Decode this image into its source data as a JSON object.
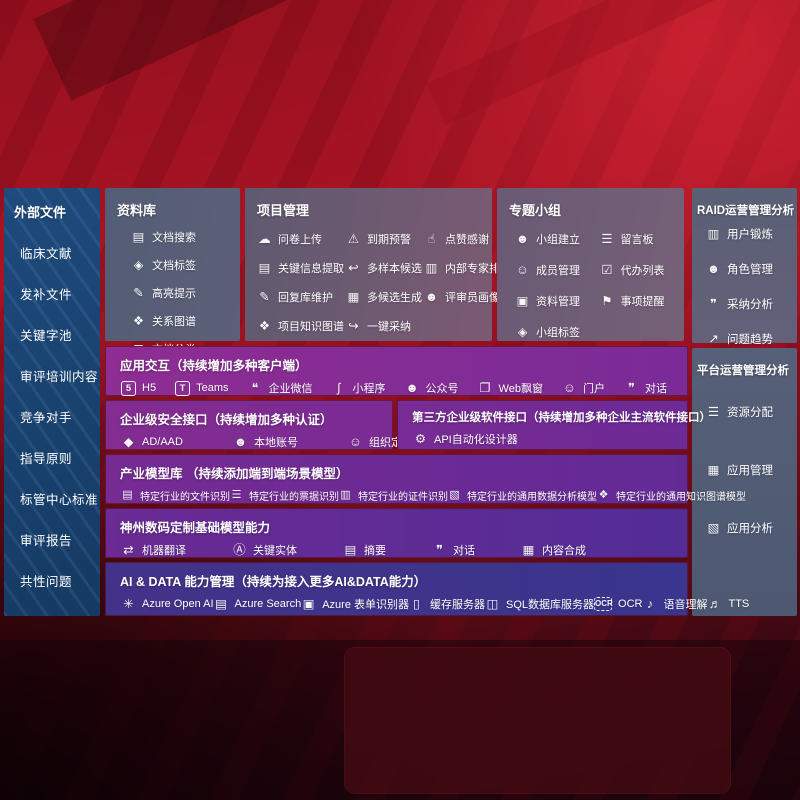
{
  "colors": {
    "accent_red": "#a81424",
    "sidebar_blue": "#1b4470",
    "panel_slate": "#5c6780",
    "row_purple": "#7a2b94",
    "row_indigo": "#3a358e",
    "text": "#ffffff"
  },
  "sidebar": {
    "title": "外部文件",
    "items": [
      "临床文献",
      "发补文件",
      "关键字池",
      "审评培训内容",
      "竞争对手",
      "指导原则",
      "标管中心标准",
      "审评报告",
      "共性问题"
    ]
  },
  "library": {
    "title": "资料库",
    "items": [
      {
        "icon": "doc-search",
        "label": "文档搜索"
      },
      {
        "icon": "doc-tag",
        "label": "文档标签"
      },
      {
        "icon": "highlight",
        "label": "高亮提示"
      },
      {
        "icon": "relation-graph",
        "label": "关系图谱"
      },
      {
        "icon": "doc-category",
        "label": "文档分类"
      }
    ]
  },
  "project": {
    "title": "项目管理",
    "items": [
      {
        "icon": "cloud-upload",
        "label": "问卷上传"
      },
      {
        "icon": "due-alert",
        "label": "到期预警"
      },
      {
        "icon": "thumbs-up",
        "label": "点赞感谢"
      },
      {
        "icon": "key-info-extract",
        "label": "关键信息提取"
      },
      {
        "icon": "multi-sample",
        "label": "多样本候选"
      },
      {
        "icon": "expert-ranking",
        "label": "内部专家排名"
      },
      {
        "icon": "reply-maintain",
        "label": "回复库维护"
      },
      {
        "icon": "multi-generate",
        "label": "多候选生成"
      },
      {
        "icon": "reviewer-profile",
        "label": "评审员画像"
      },
      {
        "icon": "project-graph",
        "label": "项目知识图谱"
      },
      {
        "icon": "one-click-adopt",
        "label": "一键采纳"
      }
    ]
  },
  "group": {
    "title": "专题小组",
    "items": [
      {
        "icon": "group-create",
        "label": "小组建立"
      },
      {
        "icon": "bbs",
        "label": "留言板"
      },
      {
        "icon": "member-manage",
        "label": "成员管理"
      },
      {
        "icon": "todo-list",
        "label": "代办列表"
      },
      {
        "icon": "material-manage",
        "label": "资料管理"
      },
      {
        "icon": "reminder",
        "label": "事项提醒"
      },
      {
        "icon": "group-tag",
        "label": "小组标签"
      }
    ]
  },
  "raid": {
    "title": "RAID运营管理分析",
    "items": [
      {
        "icon": "user-card",
        "label": "用户锻炼"
      },
      {
        "icon": "role-manage",
        "label": "角色管理"
      },
      {
        "icon": "adopt-analysis",
        "label": "采纳分析"
      },
      {
        "icon": "issue-trend",
        "label": "问题趋势"
      }
    ]
  },
  "platform": {
    "title": "平台运营管理分析",
    "items": [
      {
        "icon": "resource-allocate",
        "label": "资源分配"
      },
      {
        "icon": "app-manage",
        "label": "应用管理"
      },
      {
        "icon": "app-analysis",
        "label": "应用分析"
      }
    ]
  },
  "interaction": {
    "title": "应用交互（持续增加多种客户端）",
    "items": [
      {
        "icon": "h5",
        "label": "H5"
      },
      {
        "icon": "teams",
        "label": "Teams"
      },
      {
        "icon": "wechat-work",
        "label": "企业微信"
      },
      {
        "icon": "mini-program",
        "label": "小程序"
      },
      {
        "icon": "official-account",
        "label": "公众号"
      },
      {
        "icon": "web-popup",
        "label": "Web飘窗"
      },
      {
        "icon": "portal",
        "label": "门户"
      },
      {
        "icon": "dialog",
        "label": "对话"
      }
    ]
  },
  "security": {
    "title": "企业级安全接口（持续增加多种认证）",
    "items": [
      {
        "icon": "ad-aad",
        "label": "AD/AAD"
      },
      {
        "icon": "local-account",
        "label": "本地账号"
      },
      {
        "icon": "org-define",
        "label": "组织定义"
      }
    ]
  },
  "thirdparty": {
    "title": "第三方企业级软件接口（持续增加多种企业主流软件接口）",
    "items": [
      {
        "icon": "api-designer",
        "label": "API自动化设计器"
      }
    ]
  },
  "industry": {
    "title": "产业模型库 （持续添加端到端场景模型）",
    "items": [
      {
        "icon": "file-recognize",
        "label": "特定行业的文件识别"
      },
      {
        "icon": "receipt-recognize",
        "label": "特定行业的票据识别"
      },
      {
        "icon": "idcard-recognize",
        "label": "特定行业的证件识别"
      },
      {
        "icon": "data-analysis-model",
        "label": "特定行业的通用数据分析模型"
      },
      {
        "icon": "knowledge-graph-model",
        "label": "特定行业的通用知识图谱模型"
      }
    ]
  },
  "base_models": {
    "title": "神州数码定制基础模型能力",
    "items": [
      {
        "icon": "machine-translate",
        "label": "机器翻译"
      },
      {
        "icon": "key-entity",
        "label": "关键实体"
      },
      {
        "icon": "summary",
        "label": "摘要"
      },
      {
        "icon": "chat",
        "label": "对话"
      },
      {
        "icon": "content-compose",
        "label": "内容合成"
      }
    ]
  },
  "ai_data": {
    "title": "AI & DATA 能力管理（持续为接入更多AI&DATA能力）",
    "items": [
      {
        "icon": "openai",
        "label": "Azure Open AI"
      },
      {
        "icon": "azure-search",
        "label": "Azure Search"
      },
      {
        "icon": "form-recognizer",
        "label": "Azure 表单识别器"
      },
      {
        "icon": "cache-server",
        "label": "缓存服务器"
      },
      {
        "icon": "sql-server",
        "label": "SQL数据库服务器"
      },
      {
        "icon": "ocr",
        "label": "OCR"
      },
      {
        "icon": "speech",
        "label": "语音理解"
      },
      {
        "icon": "tts",
        "label": "TTS"
      }
    ]
  }
}
